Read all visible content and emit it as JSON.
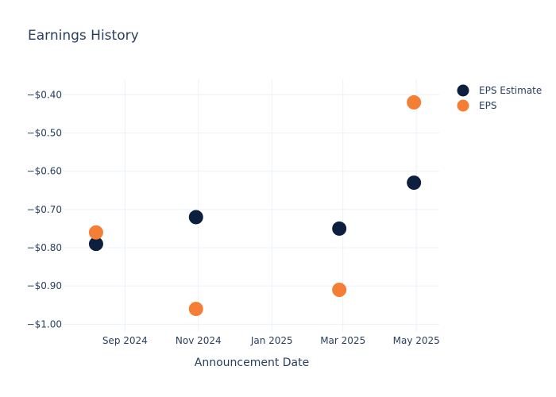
{
  "chart_data": {
    "type": "scatter",
    "title": "Earnings History",
    "xlabel": "Announcement Date",
    "ylabel": "",
    "x_ticks": [
      "2024-09-01",
      "2024-11-01",
      "2025-01-01",
      "2025-03-01",
      "2025-05-01"
    ],
    "x_tick_labels": [
      "Sep 2024",
      "Nov 2024",
      "Jan 2025",
      "Mar 2025",
      "May 2025"
    ],
    "xlim": [
      "2024-07-12",
      "2025-05-20"
    ],
    "y_ticks": [
      -1.0,
      -0.9,
      -0.8,
      -0.7,
      -0.6,
      -0.5,
      -0.4
    ],
    "y_tick_labels": [
      "−$1.00",
      "−$0.90",
      "−$0.80",
      "−$0.70",
      "−$0.60",
      "−$0.50",
      "−$0.40"
    ],
    "ylim": [
      -1.02,
      -0.36
    ],
    "grid": true,
    "legend_position": "top-right",
    "series": [
      {
        "name": "EPS Estimate",
        "color": "#0d1f3f",
        "points": [
          {
            "x": "2024-08-08",
            "y": -0.79
          },
          {
            "x": "2024-10-30",
            "y": -0.72
          },
          {
            "x": "2025-02-26",
            "y": -0.75
          },
          {
            "x": "2025-04-29",
            "y": -0.63
          }
        ]
      },
      {
        "name": "EPS",
        "color": "#f47e35",
        "points": [
          {
            "x": "2024-08-08",
            "y": -0.76
          },
          {
            "x": "2024-10-30",
            "y": -0.96
          },
          {
            "x": "2025-02-26",
            "y": -0.91
          },
          {
            "x": "2025-04-29",
            "y": -0.42
          }
        ]
      }
    ]
  }
}
